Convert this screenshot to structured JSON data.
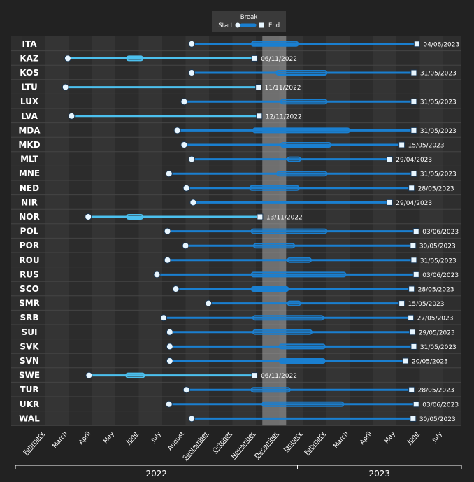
{
  "chart_data": {
    "type": "timeline",
    "title": "",
    "legend": {
      "title": "Break",
      "start_label": "Start",
      "end_label": "End",
      "placement": "top-center"
    },
    "highlight_band": {
      "start": "2022-11-16",
      "end": "2022-12-17",
      "color": "#a8a8a8"
    },
    "x_range": [
      "2022-02-01",
      "2023-08-01"
    ],
    "month_ticks": [
      "February",
      "March",
      "April",
      "May",
      "June",
      "July",
      "August",
      "September",
      "October",
      "November",
      "December",
      "January",
      "February",
      "March",
      "April",
      "May",
      "June",
      "July"
    ],
    "years": [
      "2022",
      "2023"
    ],
    "colors": {
      "active": "#1a7fd0",
      "finished": "#4cc0ee",
      "marker": "#e8f6ff",
      "background": "#222222",
      "plot": "#2e2e2e"
    },
    "rows": [
      {
        "team": "ITA",
        "start": "2022-08-16",
        "break": [
          "2022-11-02",
          "2023-01-02"
        ],
        "end": "2023-06-04",
        "end_label": "04/06/2023",
        "finished": false
      },
      {
        "team": "KAZ",
        "start": "2022-03-07",
        "break": [
          "2022-05-23",
          "2022-06-13"
        ],
        "end": "2022-11-06",
        "end_label": "06/11/2022",
        "finished": true
      },
      {
        "team": "KOS",
        "start": "2022-08-16",
        "break": [
          "2022-12-04",
          "2023-02-08"
        ],
        "end": "2023-05-31",
        "end_label": "31/05/2023",
        "finished": false
      },
      {
        "team": "LTU",
        "start": "2022-03-04",
        "break": null,
        "end": "2022-11-11",
        "end_label": "11/11/2022",
        "finished": true
      },
      {
        "team": "LUX",
        "start": "2022-08-06",
        "break": [
          "2022-12-10",
          "2023-02-08"
        ],
        "end": "2023-05-31",
        "end_label": "31/05/2023",
        "finished": false
      },
      {
        "team": "LVA",
        "start": "2022-03-12",
        "break": null,
        "end": "2022-11-12",
        "end_label": "12/11/2022",
        "finished": true
      },
      {
        "team": "MDA",
        "start": "2022-07-28",
        "break": [
          "2022-11-04",
          "2023-03-08"
        ],
        "end": "2023-05-31",
        "end_label": "31/05/2023",
        "finished": false
      },
      {
        "team": "MKD",
        "start": "2022-08-06",
        "break": [
          "2022-12-10",
          "2023-02-13"
        ],
        "end": "2023-05-15",
        "end_label": "15/05/2023",
        "finished": false
      },
      {
        "team": "MLT",
        "start": "2022-08-16",
        "break": [
          "2022-12-19",
          "2023-01-05"
        ],
        "end": "2023-04-29",
        "end_label": "29/04/2023",
        "finished": false
      },
      {
        "team": "MNE",
        "start": "2022-07-17",
        "break": [
          "2022-12-05",
          "2023-02-08"
        ],
        "end": "2023-05-31",
        "end_label": "31/05/2023",
        "finished": false
      },
      {
        "team": "NED",
        "start": "2022-08-09",
        "break": [
          "2022-10-31",
          "2023-01-03"
        ],
        "end": "2023-05-28",
        "end_label": "28/05/2023",
        "finished": false
      },
      {
        "team": "NIR",
        "start": "2022-08-18",
        "break": null,
        "end": "2023-04-29",
        "end_label": "29/04/2023",
        "finished": false
      },
      {
        "team": "NOR",
        "start": "2022-04-03",
        "break": [
          "2022-05-23",
          "2022-06-13"
        ],
        "end": "2022-11-13",
        "end_label": "13/11/2022",
        "finished": true
      },
      {
        "team": "POL",
        "start": "2022-07-15",
        "break": [
          "2022-11-02",
          "2023-02-08"
        ],
        "end": "2023-06-03",
        "end_label": "03/06/2023",
        "finished": false
      },
      {
        "team": "POR",
        "start": "2022-08-08",
        "break": [
          "2022-11-05",
          "2022-12-28"
        ],
        "end": "2023-05-30",
        "end_label": "30/05/2023",
        "finished": false
      },
      {
        "team": "ROU",
        "start": "2022-07-15",
        "break": [
          "2022-12-19",
          "2023-01-19"
        ],
        "end": "2023-05-31",
        "end_label": "31/05/2023",
        "finished": false
      },
      {
        "team": "RUS",
        "start": "2022-07-01",
        "break": [
          "2022-11-02",
          "2023-03-03"
        ],
        "end": "2023-06-03",
        "end_label": "03/06/2023",
        "finished": false
      },
      {
        "team": "SCO",
        "start": "2022-07-26",
        "break": [
          "2022-11-02",
          "2022-12-20"
        ],
        "end": "2023-05-28",
        "end_label": "28/05/2023",
        "finished": false
      },
      {
        "team": "SMR",
        "start": "2022-09-07",
        "break": [
          "2022-12-19",
          "2023-01-05"
        ],
        "end": "2023-05-15",
        "end_label": "15/05/2023",
        "finished": false
      },
      {
        "team": "SRB",
        "start": "2022-07-10",
        "break": [
          "2022-11-04",
          "2023-02-04"
        ],
        "end": "2023-05-27",
        "end_label": "27/05/2023",
        "finished": false
      },
      {
        "team": "SUI",
        "start": "2022-07-18",
        "break": [
          "2022-11-04",
          "2023-01-20"
        ],
        "end": "2023-05-29",
        "end_label": "29/05/2023",
        "finished": false
      },
      {
        "team": "SVK",
        "start": "2022-07-18",
        "break": [
          "2022-12-08",
          "2023-02-06"
        ],
        "end": "2023-05-31",
        "end_label": "31/05/2023",
        "finished": false
      },
      {
        "team": "SVN",
        "start": "2022-07-18",
        "break": [
          "2022-12-08",
          "2023-02-06"
        ],
        "end": "2023-05-20",
        "end_label": "20/05/2023",
        "finished": false
      },
      {
        "team": "SWE",
        "start": "2022-04-04",
        "break": [
          "2022-05-22",
          "2022-06-15"
        ],
        "end": "2022-11-06",
        "end_label": "06/11/2022",
        "finished": true
      },
      {
        "team": "TUR",
        "start": "2022-08-09",
        "break": [
          "2022-11-02",
          "2022-12-22"
        ],
        "end": "2023-05-28",
        "end_label": "28/05/2023",
        "finished": false
      },
      {
        "team": "UKR",
        "start": "2022-07-17",
        "break": [
          "2022-11-16",
          "2023-02-28"
        ],
        "end": "2023-06-03",
        "end_label": "03/06/2023",
        "finished": false
      },
      {
        "team": "WAL",
        "start": "2022-08-16",
        "break": null,
        "end": "2023-05-30",
        "end_label": "30/05/2023",
        "finished": false
      }
    ]
  }
}
